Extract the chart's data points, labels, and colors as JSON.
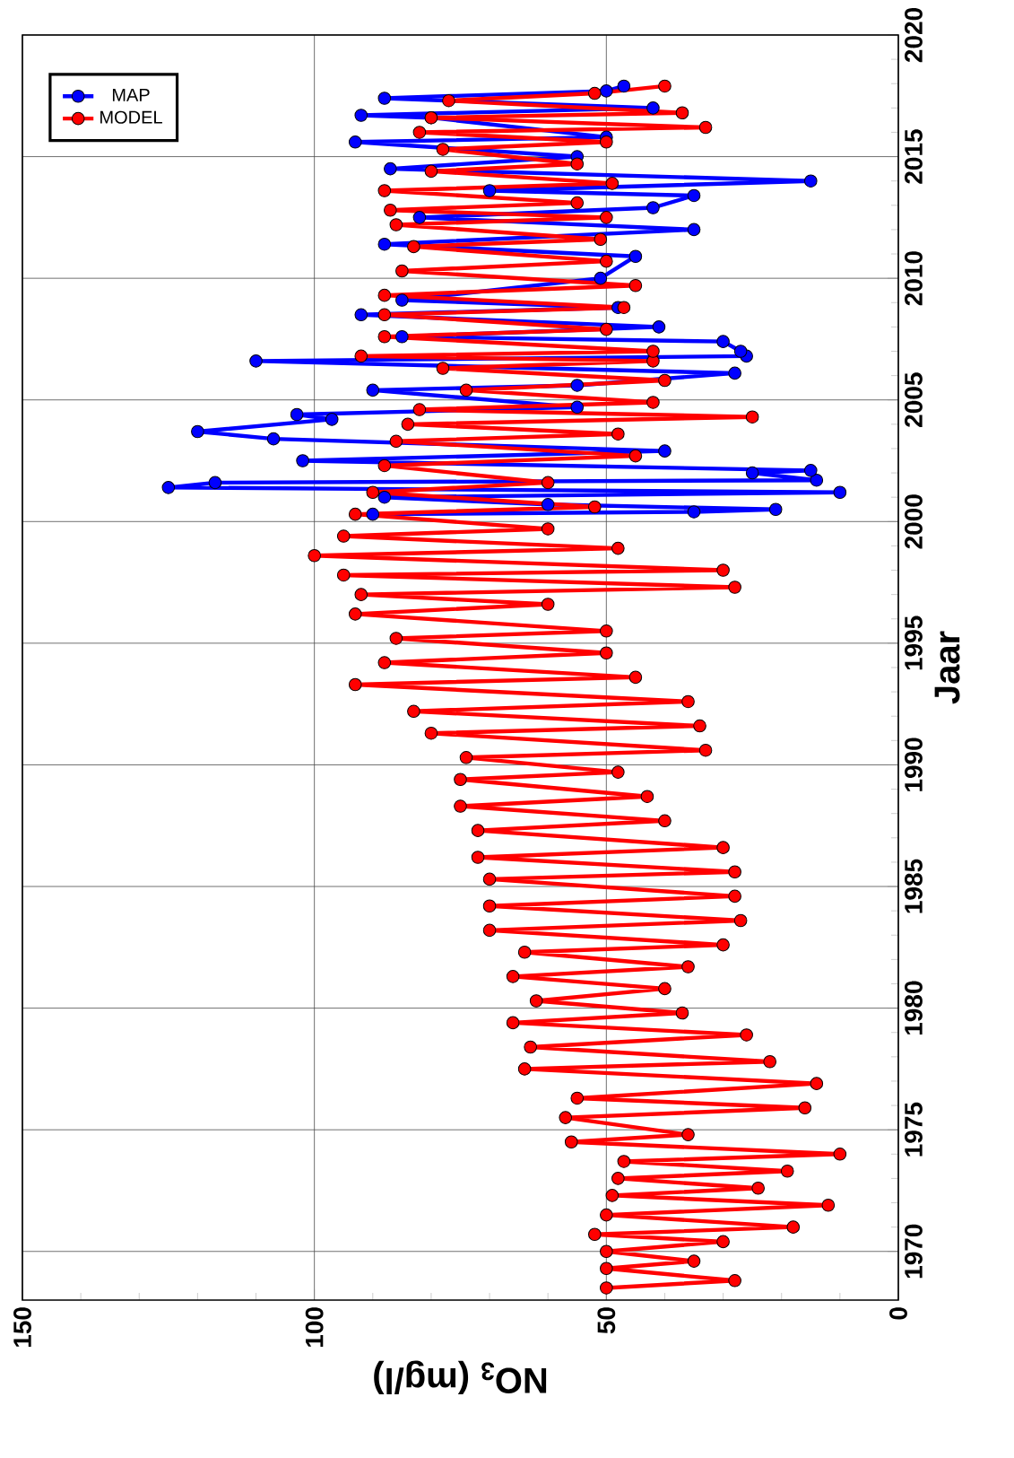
{
  "chart_data": {
    "type": "line",
    "xlabel": "NO$_{3}$ (mg/l)",
    "ylabel": "Jaar",
    "xlim": [
      150,
      0
    ],
    "ylim": [
      1968,
      2020
    ],
    "xticks": [
      150,
      100,
      50,
      0
    ],
    "yticks": [
      1970,
      1975,
      1980,
      1985,
      1990,
      1995,
      2000,
      2005,
      2010,
      2015,
      2020
    ],
    "grid": true,
    "legend": "top left",
    "marker": "circle",
    "line_style": "solid",
    "series": [
      {
        "name": "MAP",
        "color": "#0000ff",
        "x": [
          90,
          35,
          21,
          60,
          88,
          10,
          125,
          117,
          14,
          25,
          15,
          102,
          40,
          107,
          120,
          97,
          103,
          55,
          90,
          55,
          28,
          110,
          26,
          27,
          30,
          85,
          41,
          92,
          48,
          85,
          51,
          45,
          88,
          35,
          82,
          42,
          35,
          70,
          15,
          87,
          55,
          93,
          50,
          80,
          92,
          42,
          88,
          50,
          47
        ],
        "values": [
          2000.3,
          2000.4,
          2000.5,
          2000.7,
          2001.0,
          2001.2,
          2001.4,
          2001.6,
          2001.7,
          2002.0,
          2002.1,
          2002.5,
          2002.9,
          2003.4,
          2003.7,
          2004.2,
          2004.4,
          2004.7,
          2005.4,
          2005.6,
          2006.1,
          2006.6,
          2006.8,
          2007.0,
          2007.4,
          2007.6,
          2008.0,
          2008.5,
          2008.8,
          2009.1,
          2010.0,
          2010.9,
          2011.4,
          2012.0,
          2012.5,
          2012.9,
          2013.4,
          2013.6,
          2014.0,
          2014.5,
          2015.0,
          2015.6,
          2015.8,
          2016.6,
          2016.7,
          2017.0,
          2017.4,
          2017.7,
          2017.9
        ]
      },
      {
        "name": "MODEL",
        "color": "#ff0000",
        "x": [
          50,
          28,
          50,
          35,
          50,
          30,
          52,
          18,
          50,
          12,
          49,
          24,
          48,
          19,
          47,
          10,
          56,
          36,
          57,
          16,
          55,
          14,
          64,
          22,
          63,
          26,
          66,
          37,
          62,
          40,
          66,
          36,
          64,
          30,
          70,
          27,
          70,
          28,
          70,
          28,
          72,
          30,
          72,
          40,
          75,
          43,
          75,
          48,
          74,
          33,
          80,
          34,
          83,
          36,
          93,
          45,
          88,
          50,
          86,
          50,
          93,
          60,
          92,
          28,
          95,
          30,
          100,
          48,
          95,
          60,
          93,
          52,
          90,
          60,
          88,
          45,
          86,
          48,
          84,
          25,
          82,
          42,
          74,
          40,
          78,
          42,
          92,
          42,
          88,
          50,
          88,
          47,
          88,
          45,
          85,
          50,
          83,
          51,
          86,
          50,
          87,
          55,
          88,
          49,
          80,
          55,
          78,
          50,
          82,
          33,
          80,
          37,
          77,
          52,
          40
        ],
        "values": [
          1968.5,
          1968.8,
          1969.3,
          1969.6,
          1970.0,
          1970.4,
          1970.7,
          1971.0,
          1971.5,
          1971.9,
          1972.3,
          1972.6,
          1973.0,
          1973.3,
          1973.7,
          1974.0,
          1974.5,
          1974.8,
          1975.5,
          1975.9,
          1976.3,
          1976.9,
          1977.5,
          1977.8,
          1978.4,
          1978.9,
          1979.4,
          1979.8,
          1980.3,
          1980.8,
          1981.3,
          1981.7,
          1982.3,
          1982.6,
          1983.2,
          1983.6,
          1984.2,
          1984.6,
          1985.3,
          1985.6,
          1986.2,
          1986.6,
          1987.3,
          1987.7,
          1988.3,
          1988.7,
          1989.4,
          1989.7,
          1990.3,
          1990.6,
          1991.3,
          1991.6,
          1992.2,
          1992.6,
          1993.3,
          1993.6,
          1994.2,
          1994.6,
          1995.2,
          1995.5,
          1996.2,
          1996.6,
          1997.0,
          1997.3,
          1997.8,
          1998.0,
          1998.6,
          1998.9,
          1999.4,
          1999.7,
          2000.3,
          2000.6,
          2001.2,
          2001.6,
          2002.3,
          2002.7,
          2003.3,
          2003.6,
          2004.0,
          2004.3,
          2004.6,
          2004.9,
          2005.4,
          2005.8,
          2006.3,
          2006.6,
          2006.8,
          2007.0,
          2007.6,
          2007.9,
          2008.5,
          2008.8,
          2009.3,
          2009.7,
          2010.3,
          2010.7,
          2011.3,
          2011.6,
          2012.2,
          2012.5,
          2012.8,
          2013.1,
          2013.6,
          2013.9,
          2014.4,
          2014.7,
          2015.3,
          2015.6,
          2016.0,
          2016.2,
          2016.6,
          2016.8,
          2017.3,
          2017.6,
          2017.9
        ]
      }
    ]
  }
}
